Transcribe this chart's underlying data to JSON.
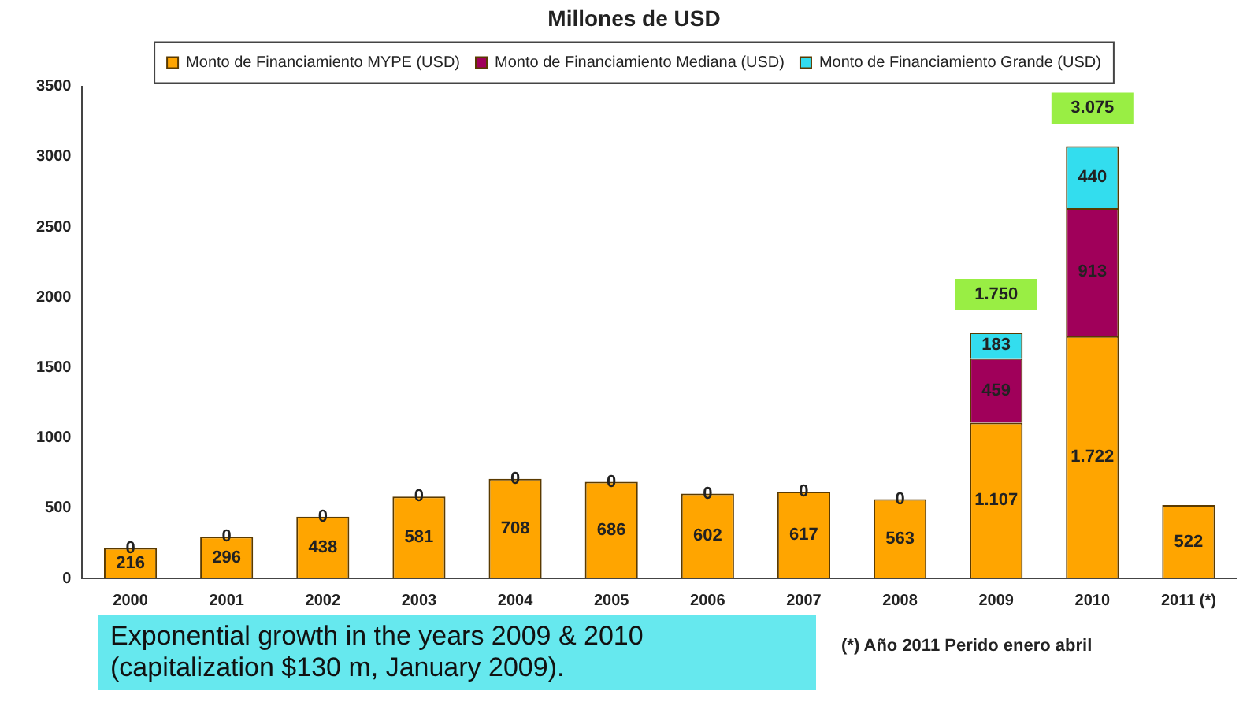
{
  "chart_data": {
    "type": "bar",
    "title": "Millones de USD",
    "stacked": true,
    "legend": "top",
    "categories": [
      "2000",
      "2001",
      "2002",
      "2003",
      "2004",
      "2005",
      "2006",
      "2007",
      "2008",
      "2009",
      "2010",
      "2011 (*)"
    ],
    "series": [
      {
        "name": "Monto de Financiamiento MYPE (USD)",
        "color": "#ffa500",
        "values": [
          216,
          296,
          438,
          581,
          708,
          686,
          602,
          617,
          563,
          1107,
          1722,
          522
        ],
        "value_labels": [
          "216",
          "296",
          "438",
          "581",
          "708",
          "686",
          "602",
          "617",
          "563",
          "1.107",
          "1.722",
          "522"
        ]
      },
      {
        "name": "Monto de Financiamiento Mediana (USD)",
        "color": "#a0005a",
        "values": [
          0,
          0,
          0,
          0,
          0,
          0,
          0,
          0,
          0,
          459,
          913,
          null
        ],
        "value_labels": [
          "0",
          "0",
          "0",
          "0",
          "0",
          "0",
          "0",
          "0",
          "0",
          "459",
          "913",
          null
        ]
      },
      {
        "name": "Monto de Financiamiento Grande (USD)",
        "color": "#33ddee",
        "values": [
          null,
          null,
          null,
          null,
          null,
          null,
          null,
          null,
          null,
          183,
          440,
          null
        ],
        "value_labels": [
          null,
          null,
          null,
          null,
          null,
          null,
          null,
          null,
          null,
          "183",
          "440",
          null
        ]
      }
    ],
    "totals": [
      null,
      null,
      null,
      null,
      null,
      null,
      null,
      null,
      null,
      "1.750",
      "3.075",
      null
    ],
    "ylim": [
      0,
      3500
    ],
    "yticks": [
      0,
      500,
      1000,
      1500,
      2000,
      2500,
      3000,
      3500
    ],
    "grid": false,
    "annotations": [
      "Exponential growth in the years 2009 & 2010 (capitalization $130 m, January 2009).",
      "(*) Año 2011 Perido enero abril"
    ]
  }
}
